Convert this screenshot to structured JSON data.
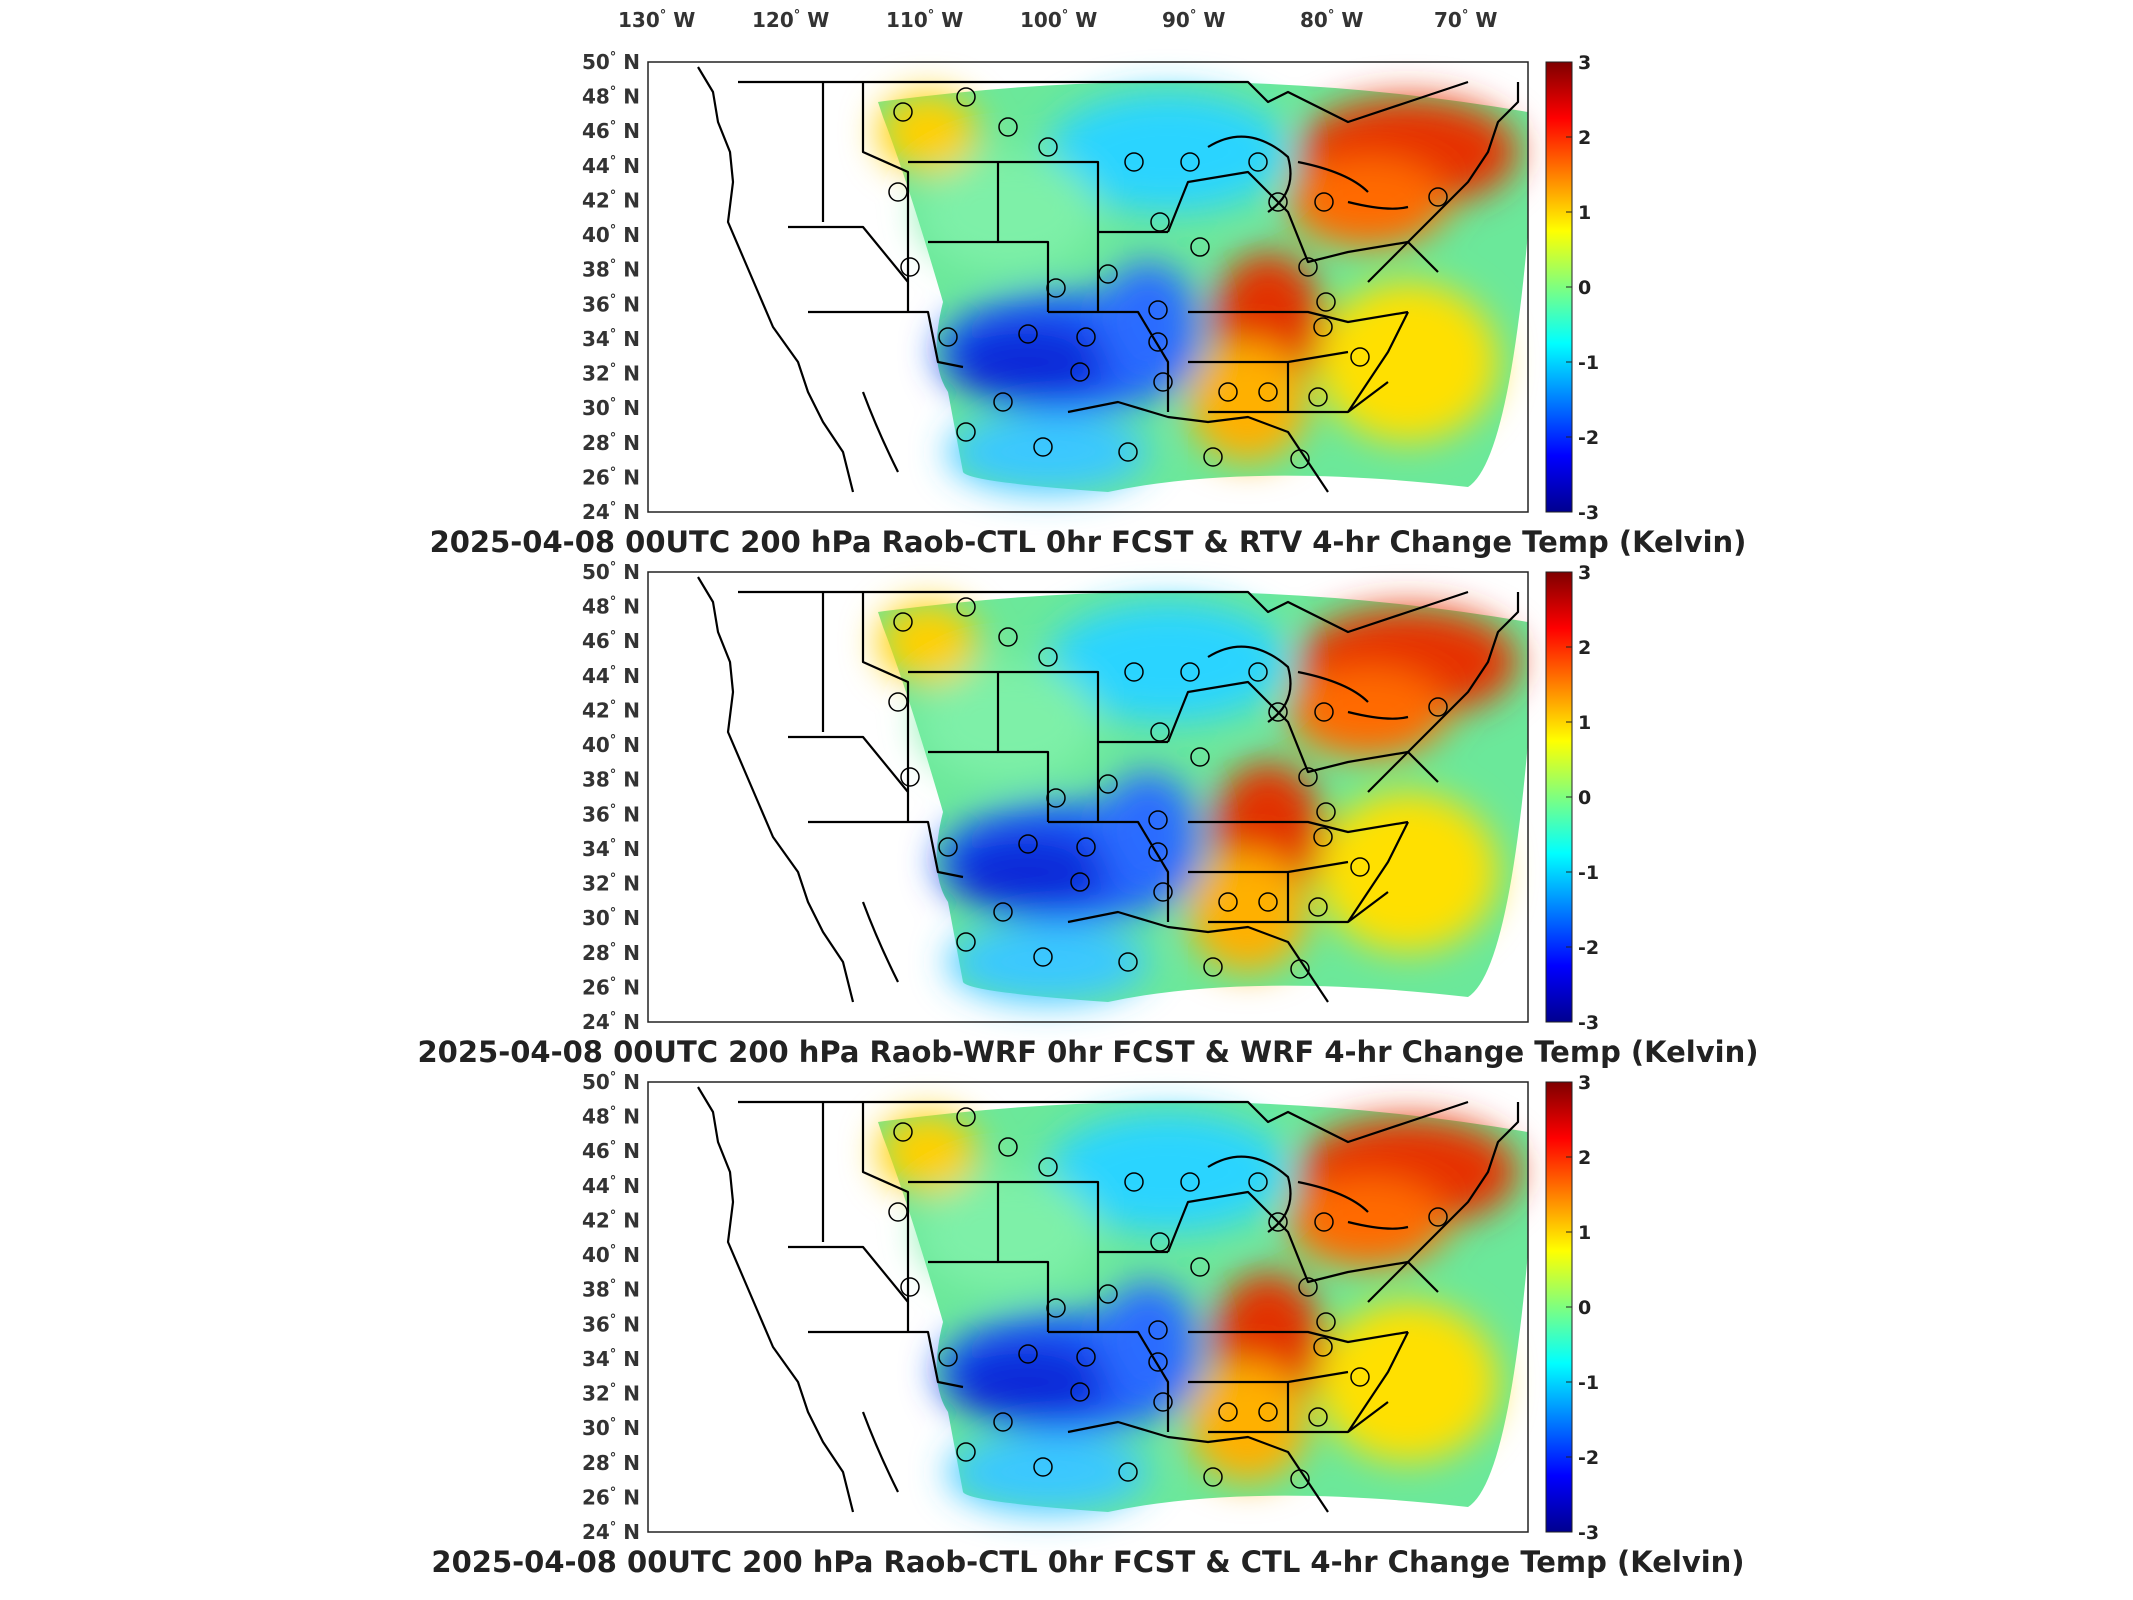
{
  "lon_labels": [
    "130",
    "120",
    "110",
    "100",
    "90",
    "80",
    "70"
  ],
  "lon_hemisphere": "W",
  "lat_labels": [
    "50",
    "48",
    "46",
    "44",
    "42",
    "40",
    "38",
    "36",
    "34",
    "32",
    "30",
    "28",
    "26",
    "24"
  ],
  "lat_hemisphere": "N",
  "degree_symbol": "°",
  "colorbar": {
    "ticks": [
      "3",
      "2",
      "1",
      "0",
      "-1",
      "-2",
      "-3"
    ],
    "min": -3,
    "max": 3
  },
  "panels": [
    {
      "title": "2025-04-08 00UTC 200 hPa Raob-CTL 0hr FCST & RTV 4-hr Change Temp (Kelvin)"
    },
    {
      "title": "2025-04-08 00UTC 200 hPa Raob-WRF 0hr FCST & WRF 4-hr Change Temp (Kelvin)"
    },
    {
      "title": "2025-04-08 00UTC 200 hPa Raob-CTL 0hr FCST & CTL 4-hr Change Temp (Kelvin)"
    }
  ],
  "colors": {
    "cold": "#00008f",
    "cool": "#0070ff",
    "neutral": "#6be89a",
    "warm": "#ffd900",
    "hot": "#d40000"
  }
}
